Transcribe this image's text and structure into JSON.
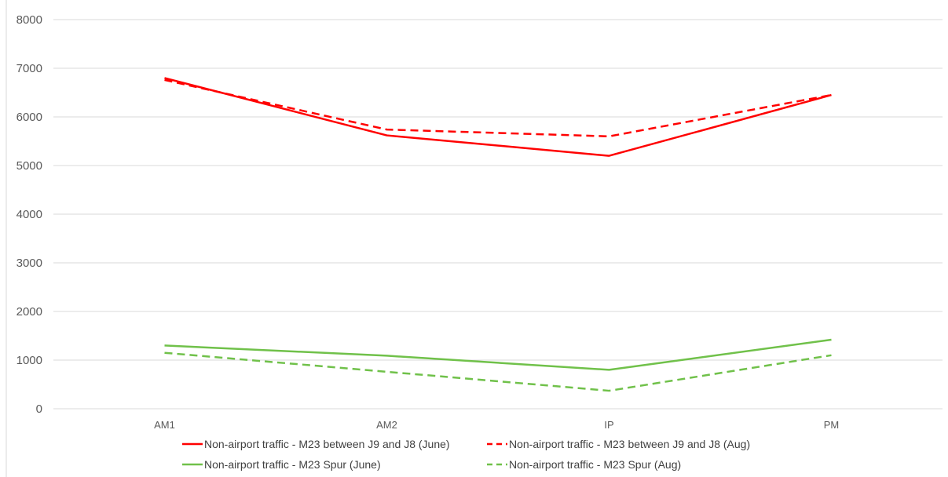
{
  "chart_data": {
    "type": "line",
    "categories": [
      "AM1",
      "AM2",
      "IP",
      "PM"
    ],
    "ylim": [
      0,
      8000
    ],
    "yticks": [
      0,
      1000,
      2000,
      3000,
      4000,
      5000,
      6000,
      7000,
      8000
    ],
    "grid": true,
    "legend_position": "bottom",
    "series": [
      {
        "name": "Non-airport traffic - M23 between J9 and J8 (June)",
        "values": [
          6800,
          5620,
          5200,
          6450
        ],
        "color": "#ff0000",
        "dash": "solid"
      },
      {
        "name": "Non-airport traffic - M23 between J9 and J8 (Aug)",
        "values": [
          6760,
          5740,
          5600,
          6450
        ],
        "color": "#ff0000",
        "dash": "dashed"
      },
      {
        "name": "Non-airport traffic - M23 Spur (June)",
        "values": [
          1300,
          1090,
          800,
          1420
        ],
        "color": "#70c14a",
        "dash": "solid"
      },
      {
        "name": "Non-airport traffic - M23 Spur (Aug)",
        "values": [
          1150,
          760,
          370,
          1100
        ],
        "color": "#70c14a",
        "dash": "dashed"
      }
    ]
  }
}
